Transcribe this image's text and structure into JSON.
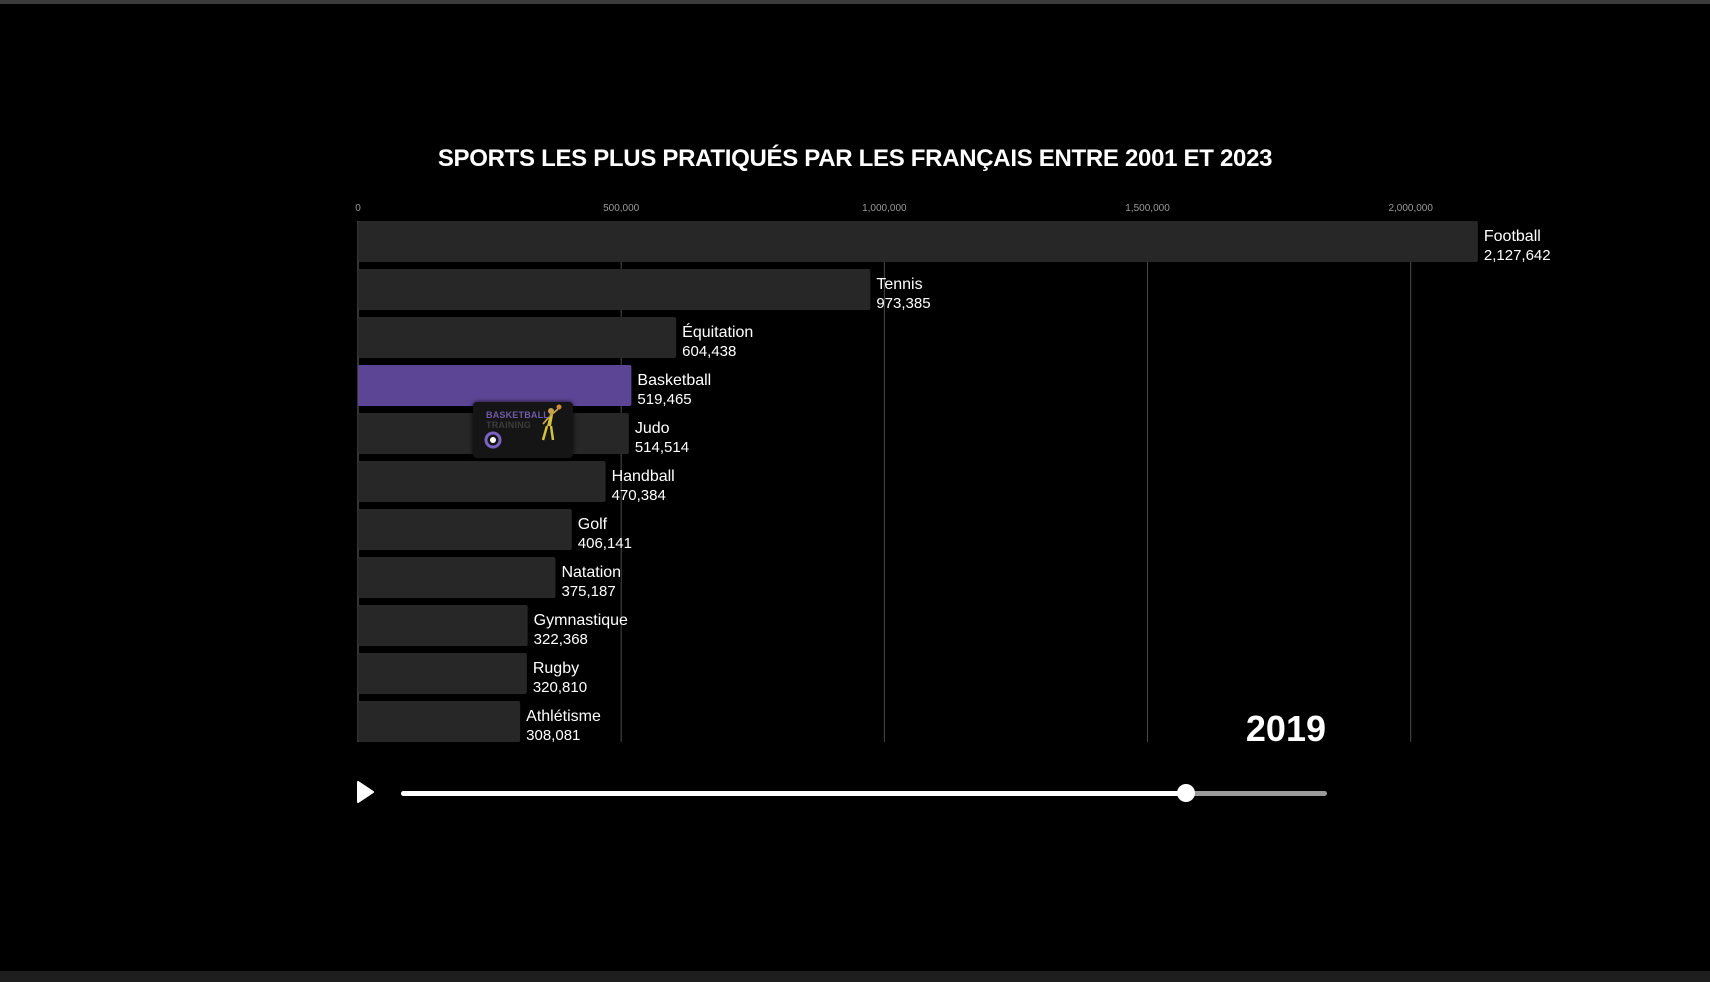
{
  "colors": {
    "background": "#000000",
    "bar": "#272727",
    "highlight_bar": "#5d4595",
    "grid": "#4a4a4a",
    "text": "#ffffff",
    "tick_text": "#9a9a9a"
  },
  "player": {
    "year": "2019",
    "play_icon": "play-icon",
    "progress": 0.848
  },
  "thumbnail": {
    "line1": "BASKETBALL",
    "line2": "TRAINING"
  },
  "chart_data": {
    "type": "bar",
    "orientation": "horizontal",
    "title": "SPORTS LES PLUS PRATIQUÉS PAR LES FRANÇAIS ENTRE 2001 ET 2023",
    "xlim": [
      0,
      2300000
    ],
    "xticks": [
      0,
      500000,
      1000000,
      1500000,
      2000000
    ],
    "xtick_labels": [
      "0",
      "500,000",
      "1,000,000",
      "1,500,000",
      "2,000,000"
    ],
    "grid": true,
    "highlighted": "Basketball",
    "categories": [
      "Football",
      "Tennis",
      "Équitation",
      "Basketball",
      "Judo",
      "Handball",
      "Golf",
      "Natation",
      "Gymnastique",
      "Rugby",
      "Athlétisme"
    ],
    "values": [
      2127642,
      973385,
      604438,
      519465,
      514514,
      470384,
      406141,
      375187,
      322368,
      320810,
      308081
    ],
    "value_labels": [
      "2,127,642",
      "973,385",
      "604,438",
      "519,465",
      "514,514",
      "470,384",
      "406,141",
      "375,187",
      "322,368",
      "320,810",
      "308,081"
    ]
  }
}
